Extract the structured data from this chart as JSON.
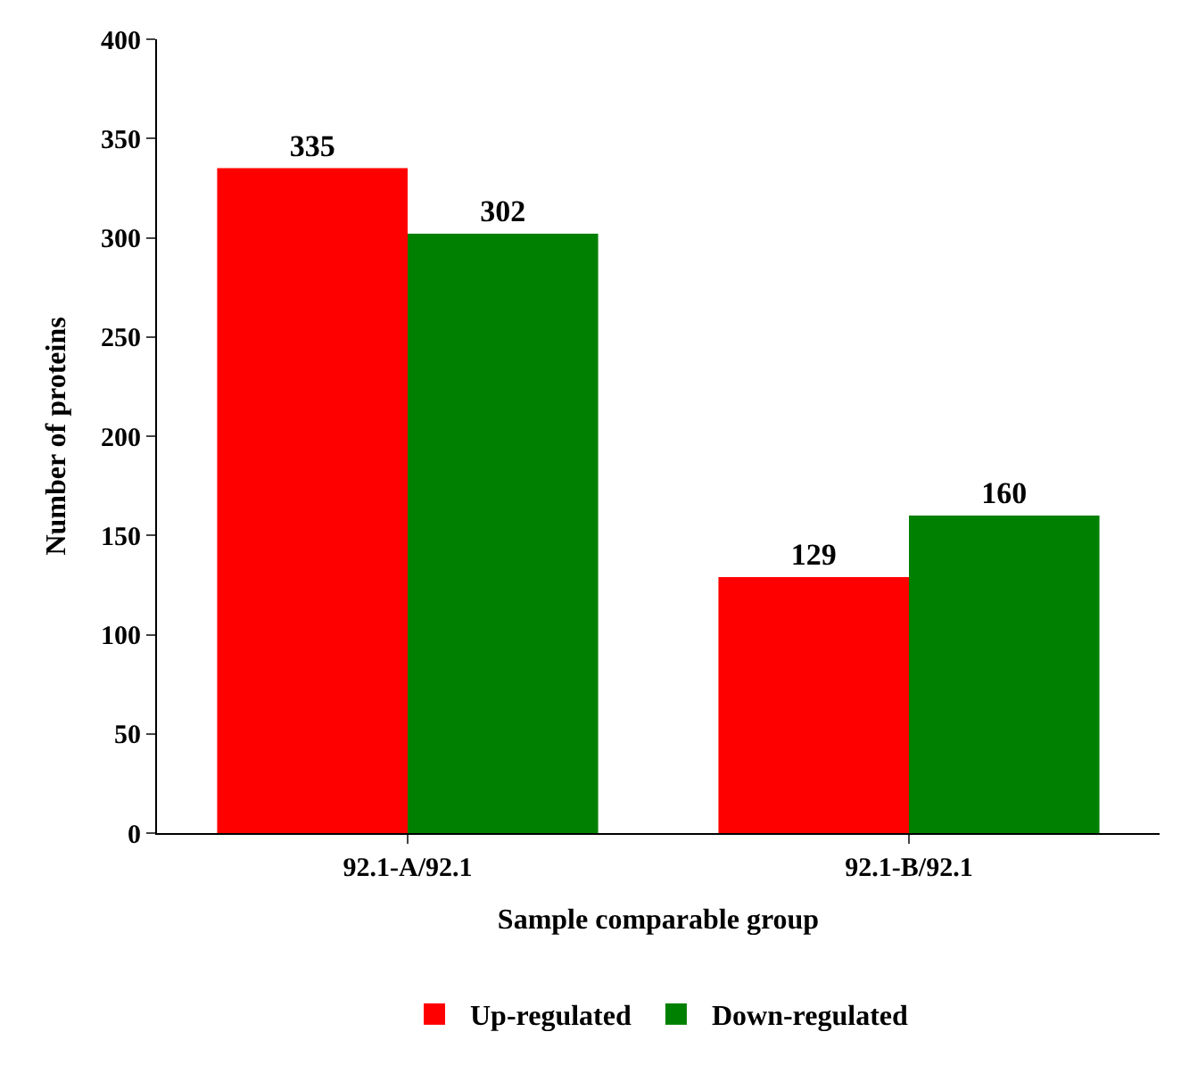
{
  "chart_data": {
    "type": "bar",
    "xlabel": "Sample comparable group",
    "ylabel": "Number of proteins",
    "categories": [
      "92.1-A/92.1",
      "92.1-B/92.1"
    ],
    "series": [
      {
        "name": "Up-regulated",
        "color": "#ff0000",
        "values": [
          335,
          129
        ]
      },
      {
        "name": "Down-regulated",
        "color": "#008000",
        "values": [
          302,
          160
        ]
      }
    ],
    "ylim": [
      0,
      400
    ],
    "yticks": [
      0,
      50,
      100,
      150,
      200,
      250,
      300,
      350,
      400
    ],
    "legend": "bottom",
    "data_labels": true
  }
}
